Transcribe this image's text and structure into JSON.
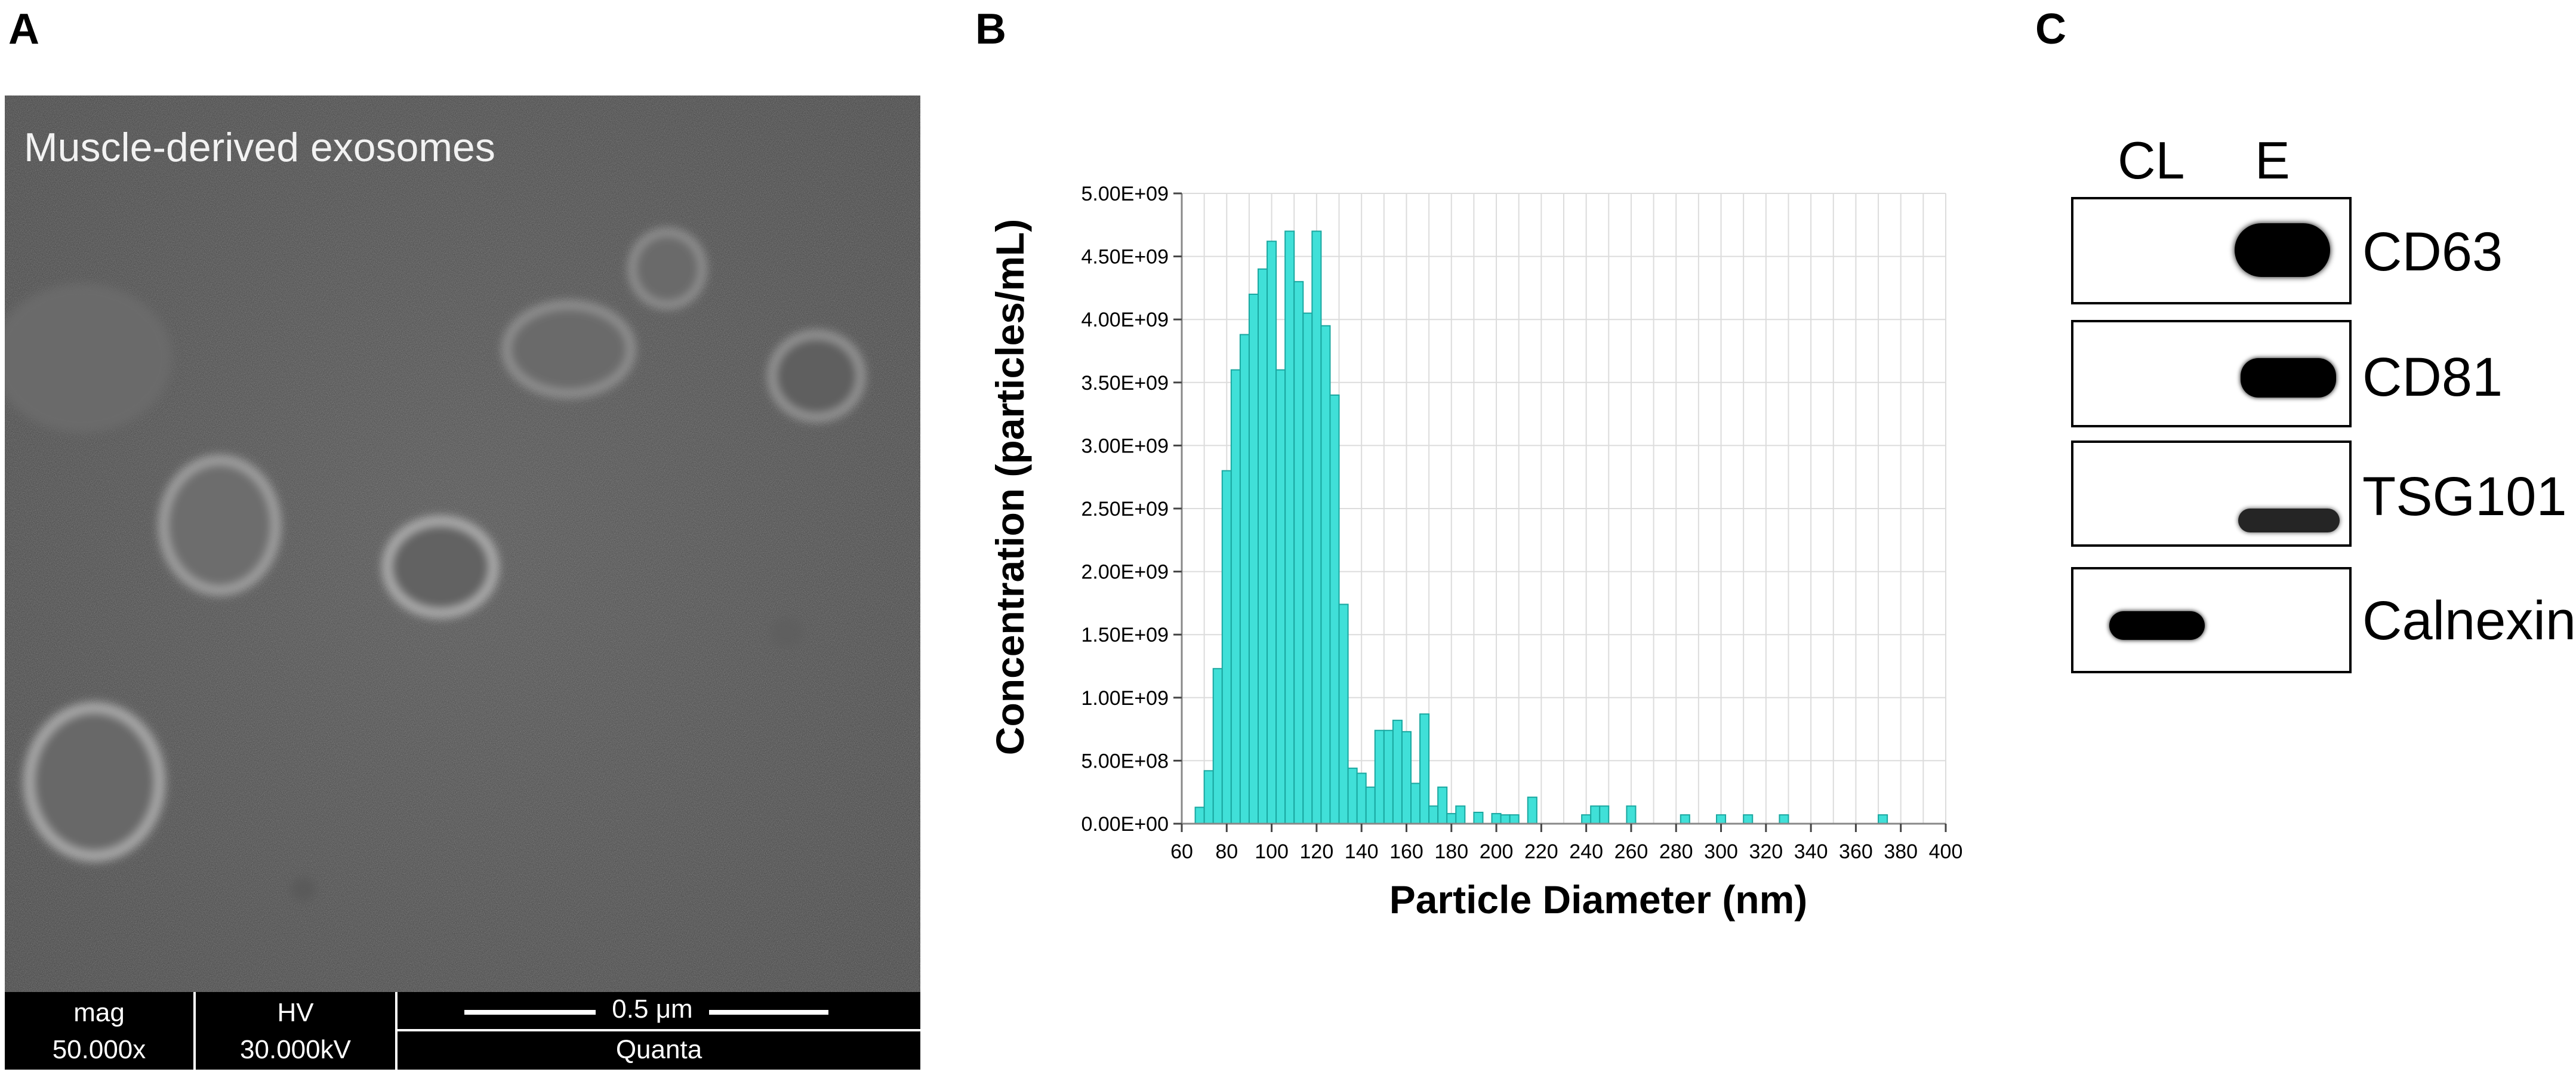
{
  "panels": {
    "a": "A",
    "b": "B",
    "c": "C"
  },
  "sem": {
    "title": "Muscle-derived exosomes",
    "mag_label": "mag",
    "mag_value": "50.000x",
    "hv_label": "HV",
    "hv_value": "30.000kV",
    "scale_label": "0.5 μm",
    "instrument": "Quanta"
  },
  "chart_data": {
    "type": "bar",
    "xlabel": "Particle Diameter (nm)",
    "ylabel": "Concentration (particles/mL)",
    "bar_color": "#40e0d8",
    "xlim": [
      60,
      400
    ],
    "ylim": [
      0,
      5000000000
    ],
    "x_ticks": [
      "60",
      "80",
      "100",
      "120",
      "140",
      "160",
      "180",
      "200",
      "220",
      "240",
      "260",
      "280",
      "300",
      "320",
      "340",
      "360",
      "380",
      "400"
    ],
    "y_ticks": [
      "0.00E+00",
      "5.00E+08",
      "1.00E+09",
      "1.50E+09",
      "2.00E+09",
      "2.50E+09",
      "3.00E+09",
      "3.50E+09",
      "4.00E+09",
      "4.50E+09",
      "5.00E+09"
    ],
    "bin_width": 4,
    "x": [
      68,
      72,
      76,
      80,
      84,
      88,
      92,
      96,
      100,
      104,
      108,
      112,
      116,
      120,
      124,
      128,
      132,
      136,
      140,
      144,
      148,
      152,
      156,
      160,
      164,
      168,
      172,
      176,
      180,
      184,
      188,
      192,
      196,
      200,
      204,
      208,
      212,
      216,
      220,
      224,
      228,
      232,
      236,
      240,
      244,
      248,
      252,
      256,
      260,
      264,
      268,
      272,
      276,
      280,
      284,
      288,
      292,
      296,
      300,
      304,
      308,
      312,
      316,
      320,
      324,
      328,
      332,
      336,
      340,
      344,
      348,
      352,
      356,
      360,
      364,
      368,
      372,
      376
    ],
    "values": [
      130000000,
      420000000,
      1230000000,
      2800000000,
      3600000000,
      3880000000,
      4200000000,
      4400000000,
      4620000000,
      3600000000,
      4700000000,
      4300000000,
      4050000000,
      4700000000,
      3950000000,
      3400000000,
      1740000000,
      440000000,
      400000000,
      290000000,
      740000000,
      740000000,
      820000000,
      730000000,
      320000000,
      870000000,
      140000000,
      290000000,
      80000000,
      140000000,
      0,
      90000000,
      0,
      80000000,
      70000000,
      70000000,
      0,
      210000000,
      0,
      0,
      0,
      0,
      0,
      70000000,
      140000000,
      140000000,
      0,
      0,
      140000000,
      0,
      0,
      0,
      0,
      0,
      70000000,
      0,
      0,
      0,
      70000000,
      0,
      0,
      70000000,
      0,
      0,
      0,
      70000000,
      0,
      0,
      0,
      0,
      0,
      0,
      0,
      0,
      0,
      0,
      70000000,
      0
    ]
  },
  "blot": {
    "lanes": [
      "CL",
      "E"
    ],
    "markers": [
      "CD63",
      "CD81",
      "TSG101",
      "Calnexin"
    ]
  }
}
